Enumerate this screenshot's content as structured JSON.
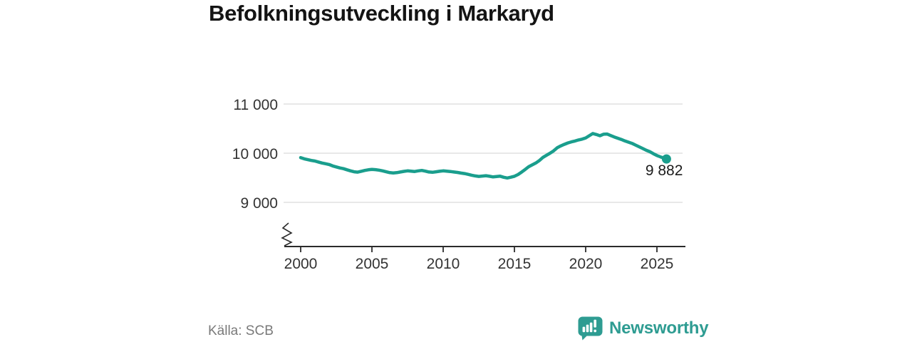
{
  "title": "Befolkningsutveckling i Markaryd",
  "source": {
    "label": "Källa: SCB"
  },
  "branding": {
    "name": "Newsworthy",
    "color": "#2E9C92",
    "icon": "newsworthy-bubble-chart-icon"
  },
  "colors": {
    "line": "#1A9E8D",
    "grid": "#d9d9d9",
    "axis": "#2b2b2b",
    "title_text": "#141414",
    "tick_text": "#333333",
    "source_text": "#7a7a7a"
  },
  "chart_data": {
    "type": "line",
    "title": "Befolkningsutveckling i Markaryd",
    "xlabel": "",
    "ylabel": "",
    "grid": "horizontal",
    "legend": "none",
    "y_axis": {
      "ticks": [
        11000,
        10000,
        9000
      ],
      "tick_labels": [
        "11 000",
        "10 000",
        "9 000"
      ],
      "axis_break": true
    },
    "x_ticks": [
      2000,
      2005,
      2010,
      2015,
      2020,
      2025
    ],
    "x_tick_labels": [
      "2000",
      "2005",
      "2010",
      "2015",
      "2020",
      "2025"
    ],
    "end_label": "9 882",
    "last_value": 9882,
    "series": [
      {
        "name": "Markaryd",
        "color": "#1A9E8D",
        "x": [
          2000,
          2000.25,
          2000.5,
          2000.75,
          2001,
          2001.25,
          2001.5,
          2001.75,
          2002,
          2002.25,
          2002.5,
          2002.75,
          2003,
          2003.25,
          2003.5,
          2003.75,
          2004,
          2004.25,
          2004.5,
          2004.75,
          2005,
          2005.25,
          2005.5,
          2005.75,
          2006,
          2006.25,
          2006.5,
          2006.75,
          2007,
          2007.25,
          2007.5,
          2007.75,
          2008,
          2008.25,
          2008.5,
          2008.75,
          2009,
          2009.25,
          2009.5,
          2009.75,
          2010,
          2010.25,
          2010.5,
          2010.75,
          2011,
          2011.25,
          2011.5,
          2011.75,
          2012,
          2012.25,
          2012.5,
          2012.75,
          2013,
          2013.25,
          2013.5,
          2013.75,
          2014,
          2014.25,
          2014.5,
          2014.75,
          2015,
          2015.25,
          2015.5,
          2015.75,
          2016,
          2016.25,
          2016.5,
          2016.75,
          2017,
          2017.25,
          2017.5,
          2017.75,
          2018,
          2018.25,
          2018.5,
          2018.75,
          2019,
          2019.25,
          2019.5,
          2019.75,
          2020,
          2020.25,
          2020.5,
          2020.75,
          2021,
          2021.25,
          2021.5,
          2021.75,
          2022,
          2022.25,
          2022.5,
          2022.75,
          2023,
          2023.25,
          2023.5,
          2023.75,
          2024,
          2024.25,
          2024.5,
          2024.75,
          2025,
          2025.25,
          2025.5,
          2025.67
        ],
        "y": [
          9910,
          9886,
          9868,
          9852,
          9840,
          9820,
          9800,
          9785,
          9770,
          9740,
          9720,
          9700,
          9685,
          9662,
          9640,
          9622,
          9615,
          9632,
          9650,
          9662,
          9670,
          9665,
          9655,
          9640,
          9622,
          9605,
          9598,
          9605,
          9618,
          9630,
          9640,
          9635,
          9628,
          9640,
          9650,
          9635,
          9618,
          9612,
          9622,
          9632,
          9640,
          9635,
          9628,
          9618,
          9608,
          9595,
          9585,
          9570,
          9552,
          9538,
          9528,
          9535,
          9542,
          9530,
          9518,
          9525,
          9532,
          9510,
          9495,
          9512,
          9530,
          9565,
          9615,
          9668,
          9725,
          9762,
          9800,
          9850,
          9915,
          9958,
          10000,
          10048,
          10110,
          10148,
          10180,
          10208,
          10230,
          10248,
          10270,
          10285,
          10310,
          10355,
          10400,
          10380,
          10355,
          10385,
          10390,
          10360,
          10330,
          10305,
          10280,
          10250,
          10225,
          10200,
          10165,
          10130,
          10095,
          10060,
          10030,
          9990,
          9952,
          9925,
          9900,
          9882
        ]
      }
    ]
  }
}
